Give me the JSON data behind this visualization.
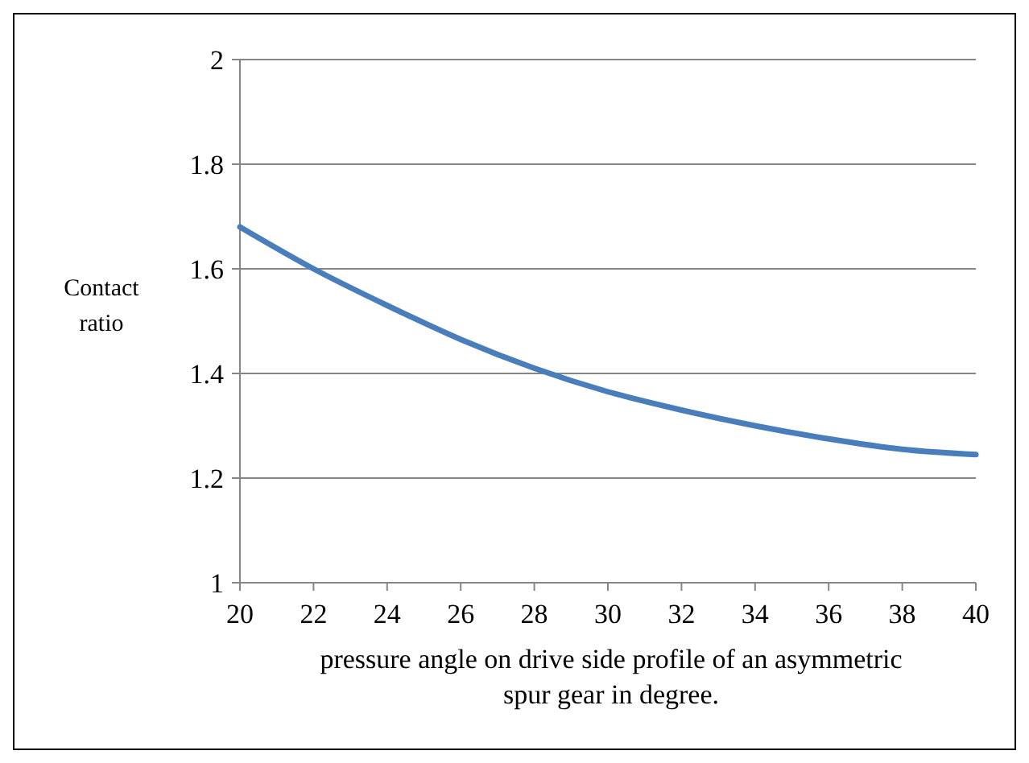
{
  "chart_data": {
    "type": "line",
    "xlabel": "pressure angle on drive side profile of  an asymmetric\nspur gear  in degree.",
    "ylabel": "Contact\nratio",
    "x": [
      20,
      22,
      24,
      26,
      28,
      30,
      32,
      34,
      36,
      38,
      40
    ],
    "series": [
      {
        "color": "#4a7ebb",
        "values": [
          1.68,
          1.6,
          1.53,
          1.465,
          1.41,
          1.365,
          1.33,
          1.3,
          1.275,
          1.255,
          1.245
        ]
      }
    ],
    "xlim": [
      20,
      40
    ],
    "xticks": [
      20,
      22,
      24,
      26,
      28,
      30,
      32,
      34,
      36,
      38,
      40
    ],
    "ylim": [
      1,
      2
    ],
    "yticks": [
      1,
      1.2,
      1.4,
      1.6,
      1.8,
      2
    ],
    "grid": "y",
    "marker": "none",
    "line_style": "solid"
  }
}
